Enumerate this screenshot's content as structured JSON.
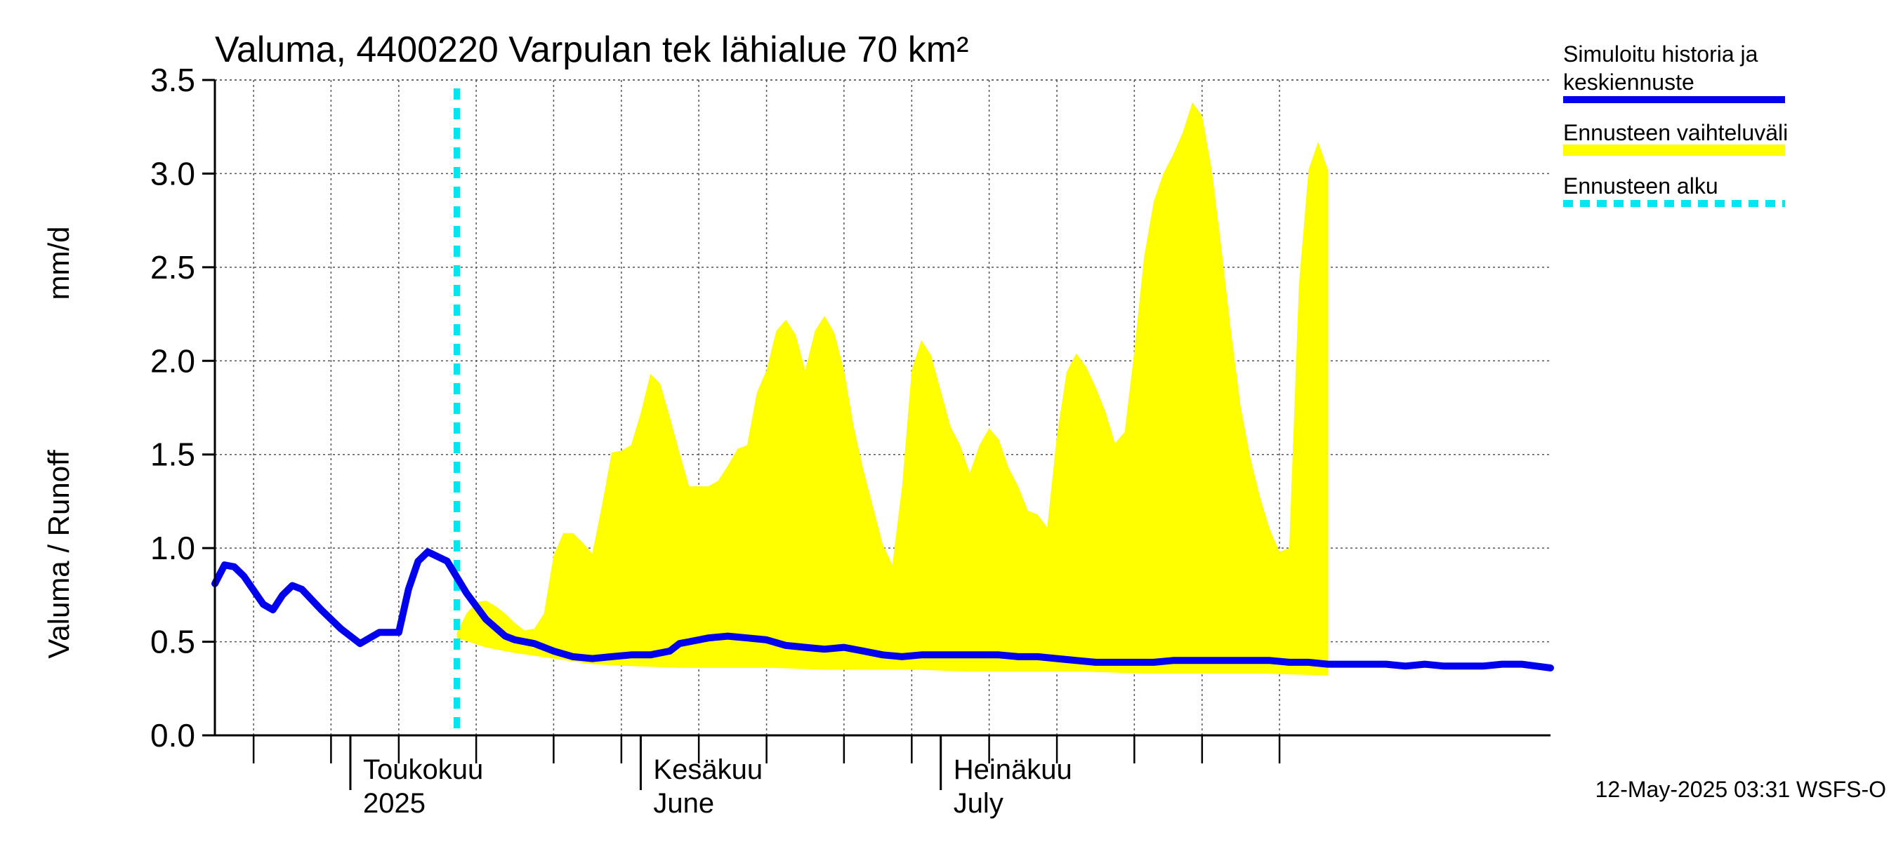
{
  "chart_data": {
    "type": "area",
    "title": "Valuma, 4400220 Varpulan tek lähialue 70 km²",
    "ylabel_fi": "Valuma / Runoff",
    "ylabel_unit": "mm/d",
    "ylim": [
      0,
      3.5
    ],
    "yticks": [
      "0.0",
      "0.5",
      "1.0",
      "1.5",
      "2.0",
      "2.5",
      "3.0",
      "3.5"
    ],
    "xlim": [
      "2025-03-18",
      "2025-08-03"
    ],
    "month_labels": [
      {
        "date": "2025-04-01",
        "line1": "Toukokuu",
        "line2": "2025"
      },
      {
        "date": "2025-05-01",
        "line1": "Kesäkuu",
        "line2": "June"
      },
      {
        "date": "2025-06-01",
        "line1": "Heinäkuu",
        "line2": "July"
      }
    ],
    "forecast_start": "2025-04-12",
    "grid": true,
    "legend_position": "right",
    "legend": [
      {
        "label_line1": "Simuloitu historia ja",
        "label_line2": "keskiennuste",
        "color": "#0000ee",
        "style": "solid"
      },
      {
        "label_line1": "Ennusteen vaihteluväli",
        "label_line2": "",
        "color": "#ffff00",
        "style": "band"
      },
      {
        "label_line1": "Ennusteen alku",
        "label_line2": "",
        "color": "#00e5ee",
        "style": "dashed"
      }
    ],
    "series": [
      {
        "name": "Simuloitu historia ja keskiennuste",
        "color": "#0000ee",
        "points": [
          [
            "2025-03-18",
            0.81
          ],
          [
            "2025-03-19",
            0.91
          ],
          [
            "2025-03-20",
            0.9
          ],
          [
            "2025-03-21",
            0.85
          ],
          [
            "2025-03-23",
            0.7
          ],
          [
            "2025-03-24",
            0.67
          ],
          [
            "2025-03-25",
            0.75
          ],
          [
            "2025-03-26",
            0.8
          ],
          [
            "2025-03-27",
            0.78
          ],
          [
            "2025-03-29",
            0.67
          ],
          [
            "2025-03-31",
            0.57
          ],
          [
            "2025-04-02",
            0.49
          ],
          [
            "2025-04-04",
            0.55
          ],
          [
            "2025-04-06",
            0.55
          ],
          [
            "2025-04-07",
            0.78
          ],
          [
            "2025-04-08",
            0.93
          ],
          [
            "2025-04-09",
            0.98
          ],
          [
            "2025-04-11",
            0.93
          ],
          [
            "2025-04-13",
            0.76
          ],
          [
            "2025-04-15",
            0.62
          ],
          [
            "2025-04-17",
            0.53
          ],
          [
            "2025-04-18",
            0.51
          ],
          [
            "2025-04-20",
            0.49
          ],
          [
            "2025-04-22",
            0.45
          ],
          [
            "2025-04-24",
            0.42
          ],
          [
            "2025-04-26",
            0.41
          ],
          [
            "2025-04-28",
            0.42
          ],
          [
            "2025-04-30",
            0.43
          ],
          [
            "2025-05-02",
            0.43
          ],
          [
            "2025-05-04",
            0.45
          ],
          [
            "2025-05-05",
            0.49
          ],
          [
            "2025-05-06",
            0.5
          ],
          [
            "2025-05-08",
            0.52
          ],
          [
            "2025-05-10",
            0.53
          ],
          [
            "2025-05-12",
            0.52
          ],
          [
            "2025-05-14",
            0.51
          ],
          [
            "2025-05-16",
            0.48
          ],
          [
            "2025-05-18",
            0.47
          ],
          [
            "2025-05-20",
            0.46
          ],
          [
            "2025-05-22",
            0.47
          ],
          [
            "2025-05-24",
            0.45
          ],
          [
            "2025-05-26",
            0.43
          ],
          [
            "2025-05-28",
            0.42
          ],
          [
            "2025-05-30",
            0.43
          ],
          [
            "2025-06-01",
            0.43
          ],
          [
            "2025-06-03",
            0.43
          ],
          [
            "2025-06-05",
            0.43
          ],
          [
            "2025-06-07",
            0.43
          ],
          [
            "2025-06-09",
            0.42
          ],
          [
            "2025-06-11",
            0.42
          ],
          [
            "2025-06-13",
            0.41
          ],
          [
            "2025-06-15",
            0.4
          ],
          [
            "2025-06-17",
            0.39
          ],
          [
            "2025-06-19",
            0.39
          ],
          [
            "2025-06-21",
            0.39
          ],
          [
            "2025-06-23",
            0.39
          ],
          [
            "2025-06-25",
            0.4
          ],
          [
            "2025-06-27",
            0.4
          ],
          [
            "2025-06-29",
            0.4
          ],
          [
            "2025-07-01",
            0.4
          ],
          [
            "2025-07-03",
            0.4
          ],
          [
            "2025-07-05",
            0.4
          ],
          [
            "2025-07-07",
            0.39
          ],
          [
            "2025-07-09",
            0.39
          ],
          [
            "2025-07-11",
            0.38
          ],
          [
            "2025-07-13",
            0.38
          ],
          [
            "2025-07-15",
            0.38
          ],
          [
            "2025-07-17",
            0.38
          ],
          [
            "2025-07-19",
            0.37
          ],
          [
            "2025-07-21",
            0.38
          ],
          [
            "2025-07-23",
            0.37
          ],
          [
            "2025-07-25",
            0.37
          ],
          [
            "2025-07-27",
            0.37
          ],
          [
            "2025-07-29",
            0.38
          ],
          [
            "2025-07-31",
            0.38
          ],
          [
            "2025-08-03",
            0.36
          ]
        ]
      },
      {
        "name": "Ennusteen vaihteluväli",
        "color": "#ffff00",
        "upper": [
          [
            "2025-04-12",
            0.55
          ],
          [
            "2025-04-13",
            0.65
          ],
          [
            "2025-04-14",
            0.71
          ],
          [
            "2025-04-15",
            0.72
          ],
          [
            "2025-04-16",
            0.69
          ],
          [
            "2025-04-17",
            0.65
          ],
          [
            "2025-04-18",
            0.6
          ],
          [
            "2025-04-19",
            0.56
          ],
          [
            "2025-04-20",
            0.57
          ],
          [
            "2025-04-21",
            0.65
          ],
          [
            "2025-04-22",
            0.96
          ],
          [
            "2025-04-23",
            1.08
          ],
          [
            "2025-04-24",
            1.08
          ],
          [
            "2025-04-25",
            1.03
          ],
          [
            "2025-04-26",
            0.97
          ],
          [
            "2025-04-27",
            1.23
          ],
          [
            "2025-04-28",
            1.51
          ],
          [
            "2025-04-29",
            1.52
          ],
          [
            "2025-04-30",
            1.55
          ],
          [
            "2025-05-01",
            1.72
          ],
          [
            "2025-05-02",
            1.93
          ],
          [
            "2025-05-03",
            1.88
          ],
          [
            "2025-05-04",
            1.7
          ],
          [
            "2025-05-05",
            1.51
          ],
          [
            "2025-05-06",
            1.33
          ],
          [
            "2025-05-07",
            1.33
          ],
          [
            "2025-05-08",
            1.33
          ],
          [
            "2025-05-09",
            1.36
          ],
          [
            "2025-05-10",
            1.44
          ],
          [
            "2025-05-11",
            1.53
          ],
          [
            "2025-05-12",
            1.55
          ],
          [
            "2025-05-13",
            1.83
          ],
          [
            "2025-05-14",
            1.95
          ],
          [
            "2025-05-15",
            2.16
          ],
          [
            "2025-05-16",
            2.22
          ],
          [
            "2025-05-17",
            2.14
          ],
          [
            "2025-05-18",
            1.95
          ],
          [
            "2025-05-19",
            2.16
          ],
          [
            "2025-05-20",
            2.24
          ],
          [
            "2025-05-21",
            2.15
          ],
          [
            "2025-05-22",
            1.95
          ],
          [
            "2025-05-23",
            1.65
          ],
          [
            "2025-05-24",
            1.42
          ],
          [
            "2025-05-25",
            1.22
          ],
          [
            "2025-05-26",
            1.02
          ],
          [
            "2025-05-27",
            0.91
          ],
          [
            "2025-05-28",
            1.33
          ],
          [
            "2025-05-29",
            1.95
          ],
          [
            "2025-05-30",
            2.11
          ],
          [
            "2025-05-31",
            2.03
          ],
          [
            "2025-06-01",
            1.84
          ],
          [
            "2025-06-02",
            1.65
          ],
          [
            "2025-06-03",
            1.55
          ],
          [
            "2025-06-04",
            1.4
          ],
          [
            "2025-06-05",
            1.55
          ],
          [
            "2025-06-06",
            1.64
          ],
          [
            "2025-06-07",
            1.58
          ],
          [
            "2025-06-08",
            1.43
          ],
          [
            "2025-06-09",
            1.33
          ],
          [
            "2025-06-10",
            1.2
          ],
          [
            "2025-06-11",
            1.18
          ],
          [
            "2025-06-12",
            1.11
          ],
          [
            "2025-06-13",
            1.6
          ],
          [
            "2025-06-14",
            1.94
          ],
          [
            "2025-06-15",
            2.04
          ],
          [
            "2025-06-16",
            1.97
          ],
          [
            "2025-06-17",
            1.86
          ],
          [
            "2025-06-18",
            1.73
          ],
          [
            "2025-06-19",
            1.56
          ],
          [
            "2025-06-20",
            1.62
          ],
          [
            "2025-06-21",
            2.05
          ],
          [
            "2025-06-22",
            2.55
          ],
          [
            "2025-06-23",
            2.85
          ],
          [
            "2025-06-24",
            3.0
          ],
          [
            "2025-06-25",
            3.1
          ],
          [
            "2025-06-26",
            3.22
          ],
          [
            "2025-06-27",
            3.38
          ],
          [
            "2025-06-28",
            3.31
          ],
          [
            "2025-06-29",
            3.02
          ],
          [
            "2025-06-30",
            2.6
          ],
          [
            "2025-07-01",
            2.15
          ],
          [
            "2025-07-02",
            1.75
          ],
          [
            "2025-07-03",
            1.48
          ],
          [
            "2025-07-04",
            1.27
          ],
          [
            "2025-07-05",
            1.1
          ],
          [
            "2025-07-06",
            0.98
          ],
          [
            "2025-07-07",
            1.0
          ],
          [
            "2025-07-08",
            2.4
          ],
          [
            "2025-07-09",
            3.02
          ],
          [
            "2025-07-10",
            3.17
          ],
          [
            "2025-07-11",
            3.02
          ]
        ],
        "lower": [
          [
            "2025-04-12",
            0.52
          ],
          [
            "2025-04-15",
            0.47
          ],
          [
            "2025-04-18",
            0.44
          ],
          [
            "2025-04-22",
            0.41
          ],
          [
            "2025-04-26",
            0.38
          ],
          [
            "2025-04-30",
            0.37
          ],
          [
            "2025-05-05",
            0.36
          ],
          [
            "2025-05-10",
            0.36
          ],
          [
            "2025-05-15",
            0.36
          ],
          [
            "2025-05-20",
            0.35
          ],
          [
            "2025-05-25",
            0.35
          ],
          [
            "2025-05-30",
            0.35
          ],
          [
            "2025-06-04",
            0.34
          ],
          [
            "2025-06-10",
            0.34
          ],
          [
            "2025-06-16",
            0.34
          ],
          [
            "2025-06-22",
            0.33
          ],
          [
            "2025-06-28",
            0.33
          ],
          [
            "2025-07-04",
            0.33
          ],
          [
            "2025-07-11",
            0.32
          ]
        ]
      }
    ]
  },
  "footer": "12-May-2025 03:31 WSFS-O"
}
